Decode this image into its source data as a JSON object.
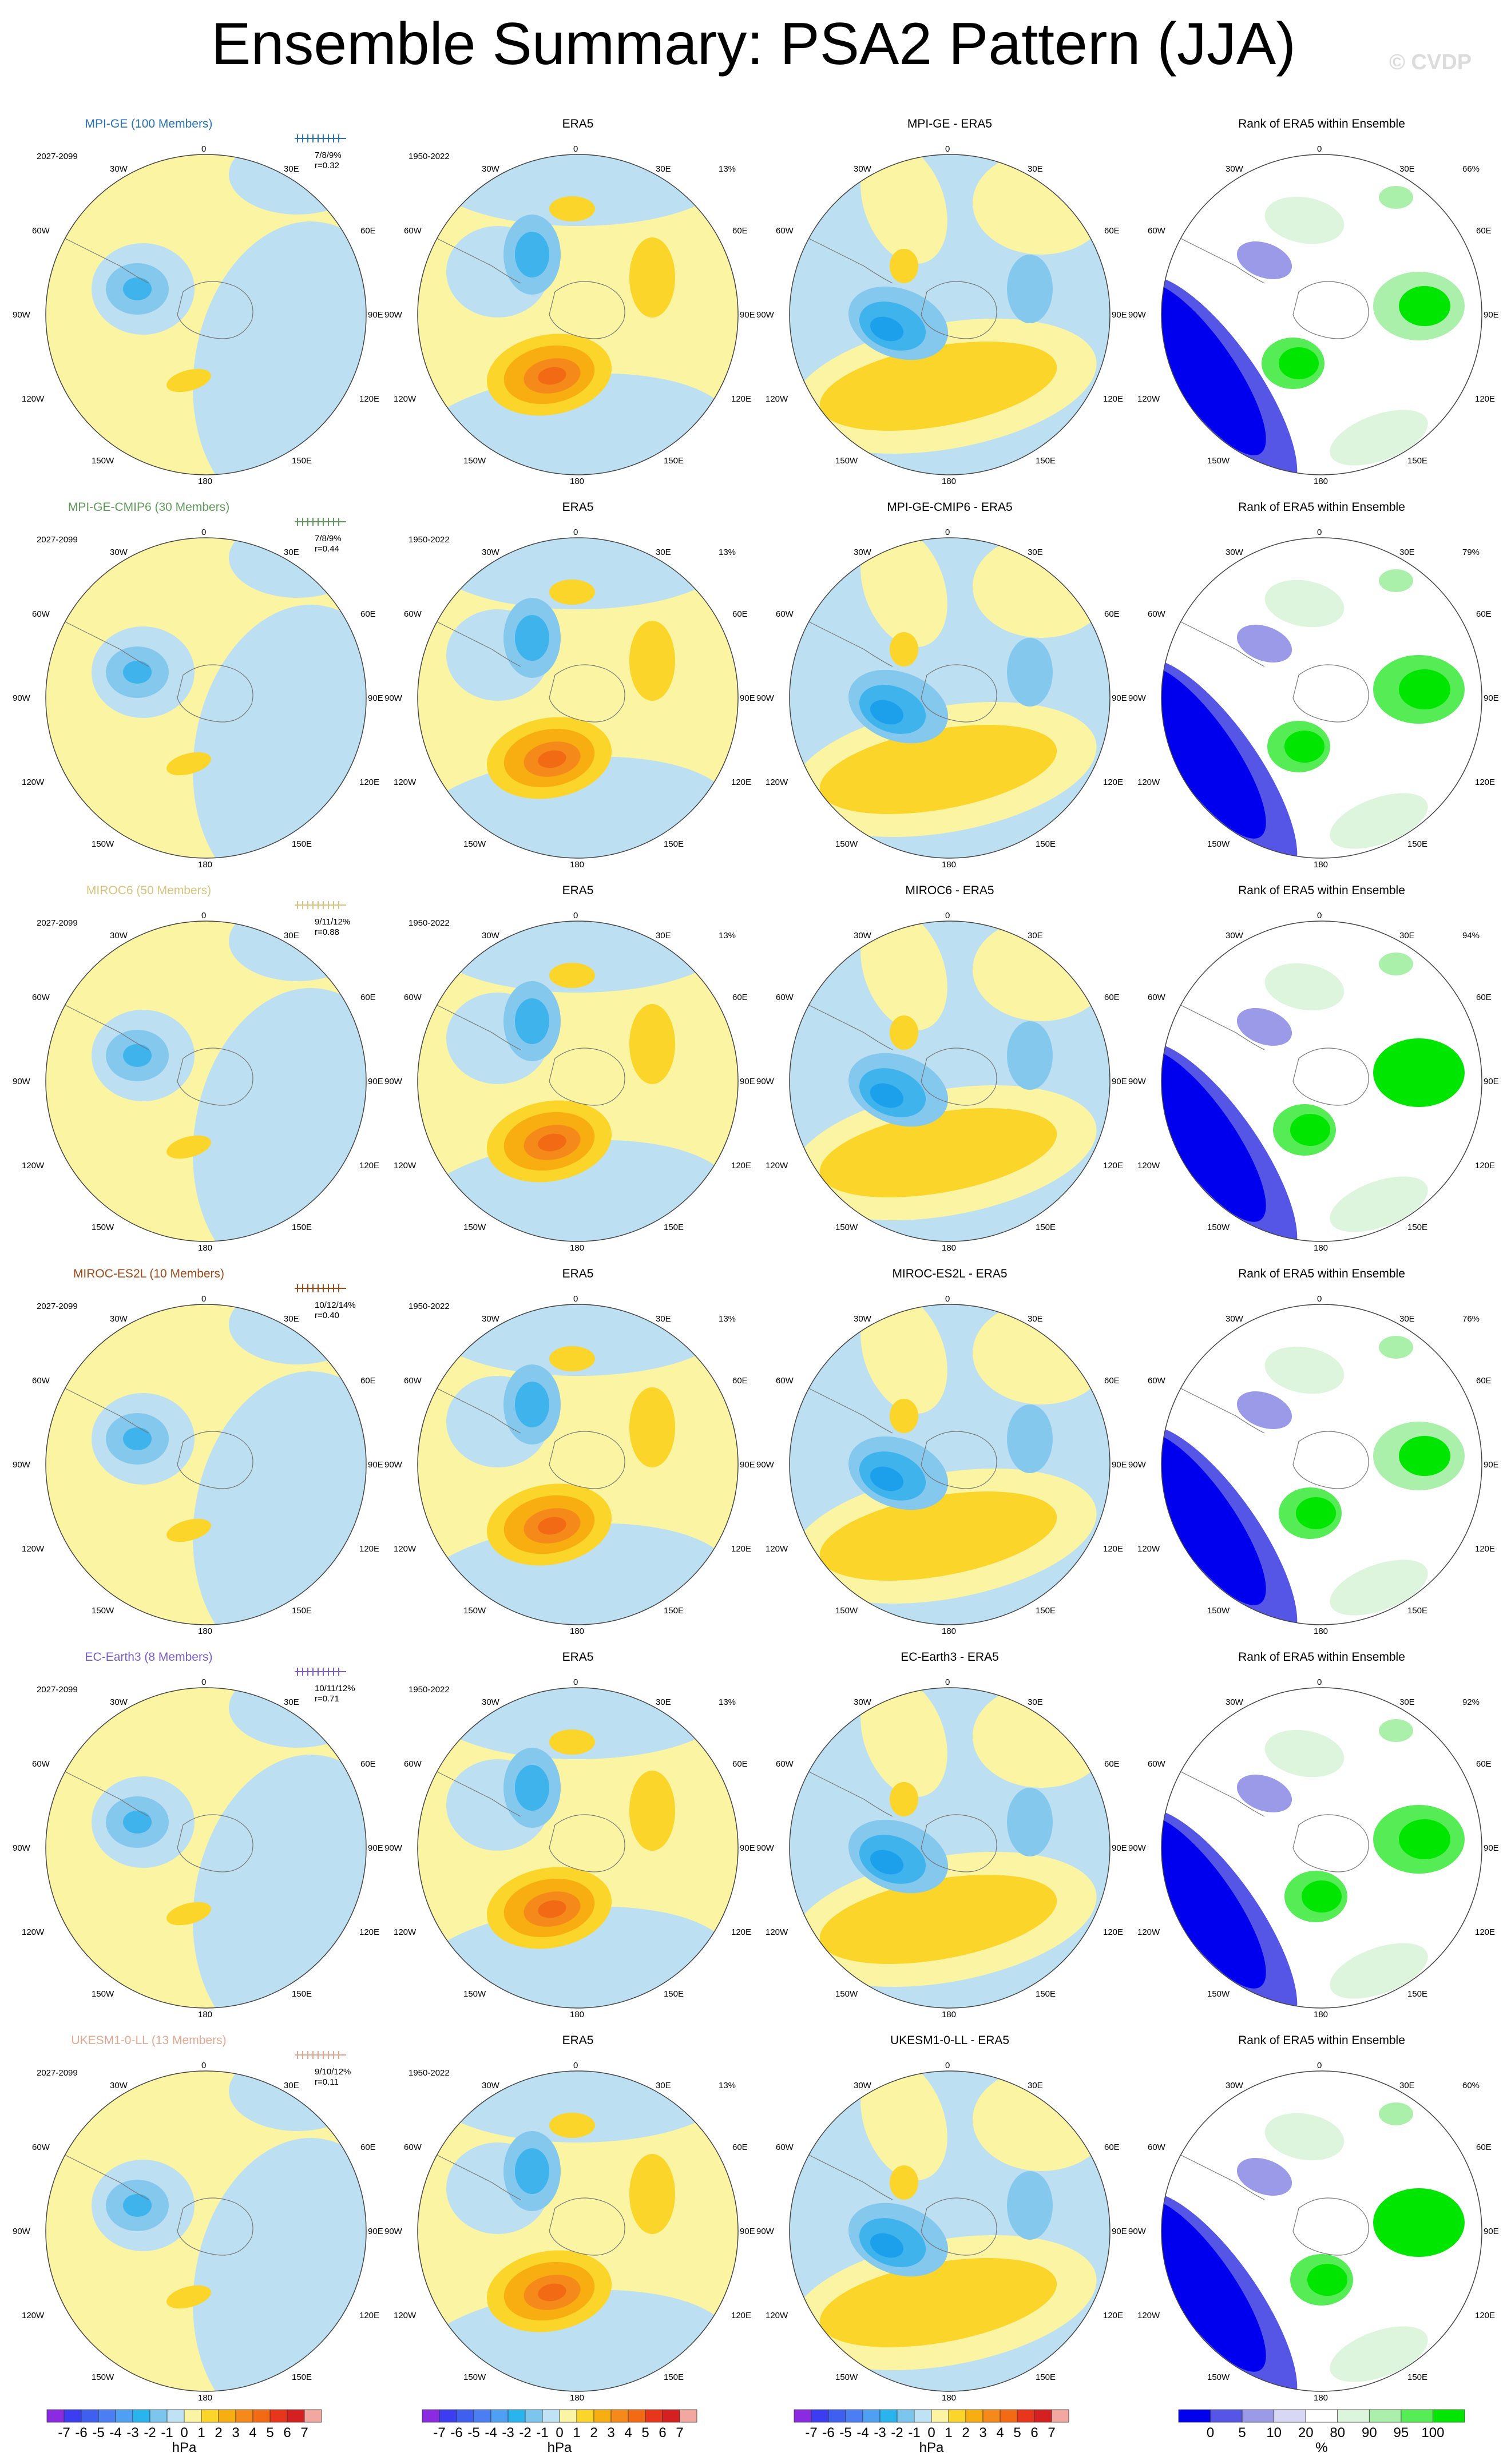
{
  "title": "Ensemble Summary: PSA2 Pattern (JJA)",
  "credit": "© CVDP",
  "colors": {
    "pos": [
      "#fbf5a3",
      "#fcd52b",
      "#f8ad10",
      "#f58a1b",
      "#f26a14"
    ],
    "neg": [
      "#bcdff2",
      "#85c8ee",
      "#3fb3ec",
      "#1ca0eb"
    ],
    "rank": [
      "#0000ee",
      "#5555e6",
      "#9a9ae8",
      "#d8d8f4",
      "#ffffff",
      "#dcf5dc",
      "#aaf0aa",
      "#55ec55",
      "#00e600"
    ]
  },
  "rows": [
    {
      "model": "MPI-GE (100 Members)",
      "model_color": "#2b74b4",
      "model_period": "2027-2099",
      "stats": "7/8/9%",
      "r": "r=0.32",
      "diff_title": "MPI-GE - ERA5",
      "rank_pct": "66%"
    },
    {
      "model": "MPI-GE-CMIP6 (30 Members)",
      "model_color": "#5f9a5a",
      "model_period": "2027-2099",
      "stats": "7/8/9%",
      "r": "r=0.44",
      "diff_title": "MPI-GE-CMIP6 - ERA5",
      "rank_pct": "79%"
    },
    {
      "model": "MIROC6 (50 Members)",
      "model_color": "#d9c37e",
      "model_period": "2027-2099",
      "stats": "9/11/12%",
      "r": "r=0.88",
      "diff_title": "MIROC6 - ERA5",
      "rank_pct": "94%"
    },
    {
      "model": "MIROC-ES2L (10 Members)",
      "model_color": "#9c4a1a",
      "model_period": "2027-2099",
      "stats": "10/12/14%",
      "r": "r=0.40",
      "diff_title": "MIROC-ES2L - ERA5",
      "rank_pct": "76%"
    },
    {
      "model": "EC-Earth3 (8 Members)",
      "model_color": "#7a5cc7",
      "model_period": "2027-2099",
      "stats": "10/11/12%",
      "r": "r=0.71",
      "diff_title": "EC-Earth3 - ERA5",
      "rank_pct": "92%"
    },
    {
      "model": "UKESM1-0-LL (13 Members)",
      "model_color": "#e0a890",
      "model_period": "2027-2099",
      "stats": "9/10/12%",
      "r": "r=0.11",
      "diff_title": "UKESM1-0-LL - ERA5",
      "rank_pct": "60%"
    }
  ],
  "era5": {
    "title": "ERA5",
    "period": "1950-2022",
    "pct": "13%"
  },
  "rank_title": "Rank of ERA5 within Ensemble",
  "map_labels": {
    "top": "0",
    "bottom": "180",
    "tl": "30W",
    "tr": "30E",
    "ul": "60W",
    "ur": "60E",
    "ml": "90W",
    "mr": "90E",
    "ll": "120W",
    "lr": "120E",
    "bl": "150W",
    "br": "150E"
  },
  "colorbar_hpa": {
    "ticks": [
      "-7",
      "-6",
      "-5",
      "-4",
      "-3",
      "-2",
      "-1",
      "0",
      "1",
      "2",
      "3",
      "4",
      "5",
      "6",
      "7"
    ],
    "unit": "hPa",
    "colors": [
      "#8a2be2",
      "#3c3cf0",
      "#3f5ff0",
      "#4a7ef2",
      "#4fa0f2",
      "#2ab4ee",
      "#7cc6ee",
      "#bfe2f4",
      "#fbf5a3",
      "#fcd52b",
      "#f8ad10",
      "#f58a1b",
      "#f26a14",
      "#e8361c",
      "#d42020",
      "#f2a7a0"
    ]
  },
  "colorbar_rank": {
    "ticks": [
      "0",
      "5",
      "10",
      "20",
      "80",
      "90",
      "95",
      "100"
    ],
    "unit": "%",
    "colors": [
      "#0000ee",
      "#5555e6",
      "#9a9ae8",
      "#d8d8f4",
      "#ffffff",
      "#dcf5dc",
      "#aaf0aa",
      "#55ec55",
      "#00e600"
    ]
  }
}
